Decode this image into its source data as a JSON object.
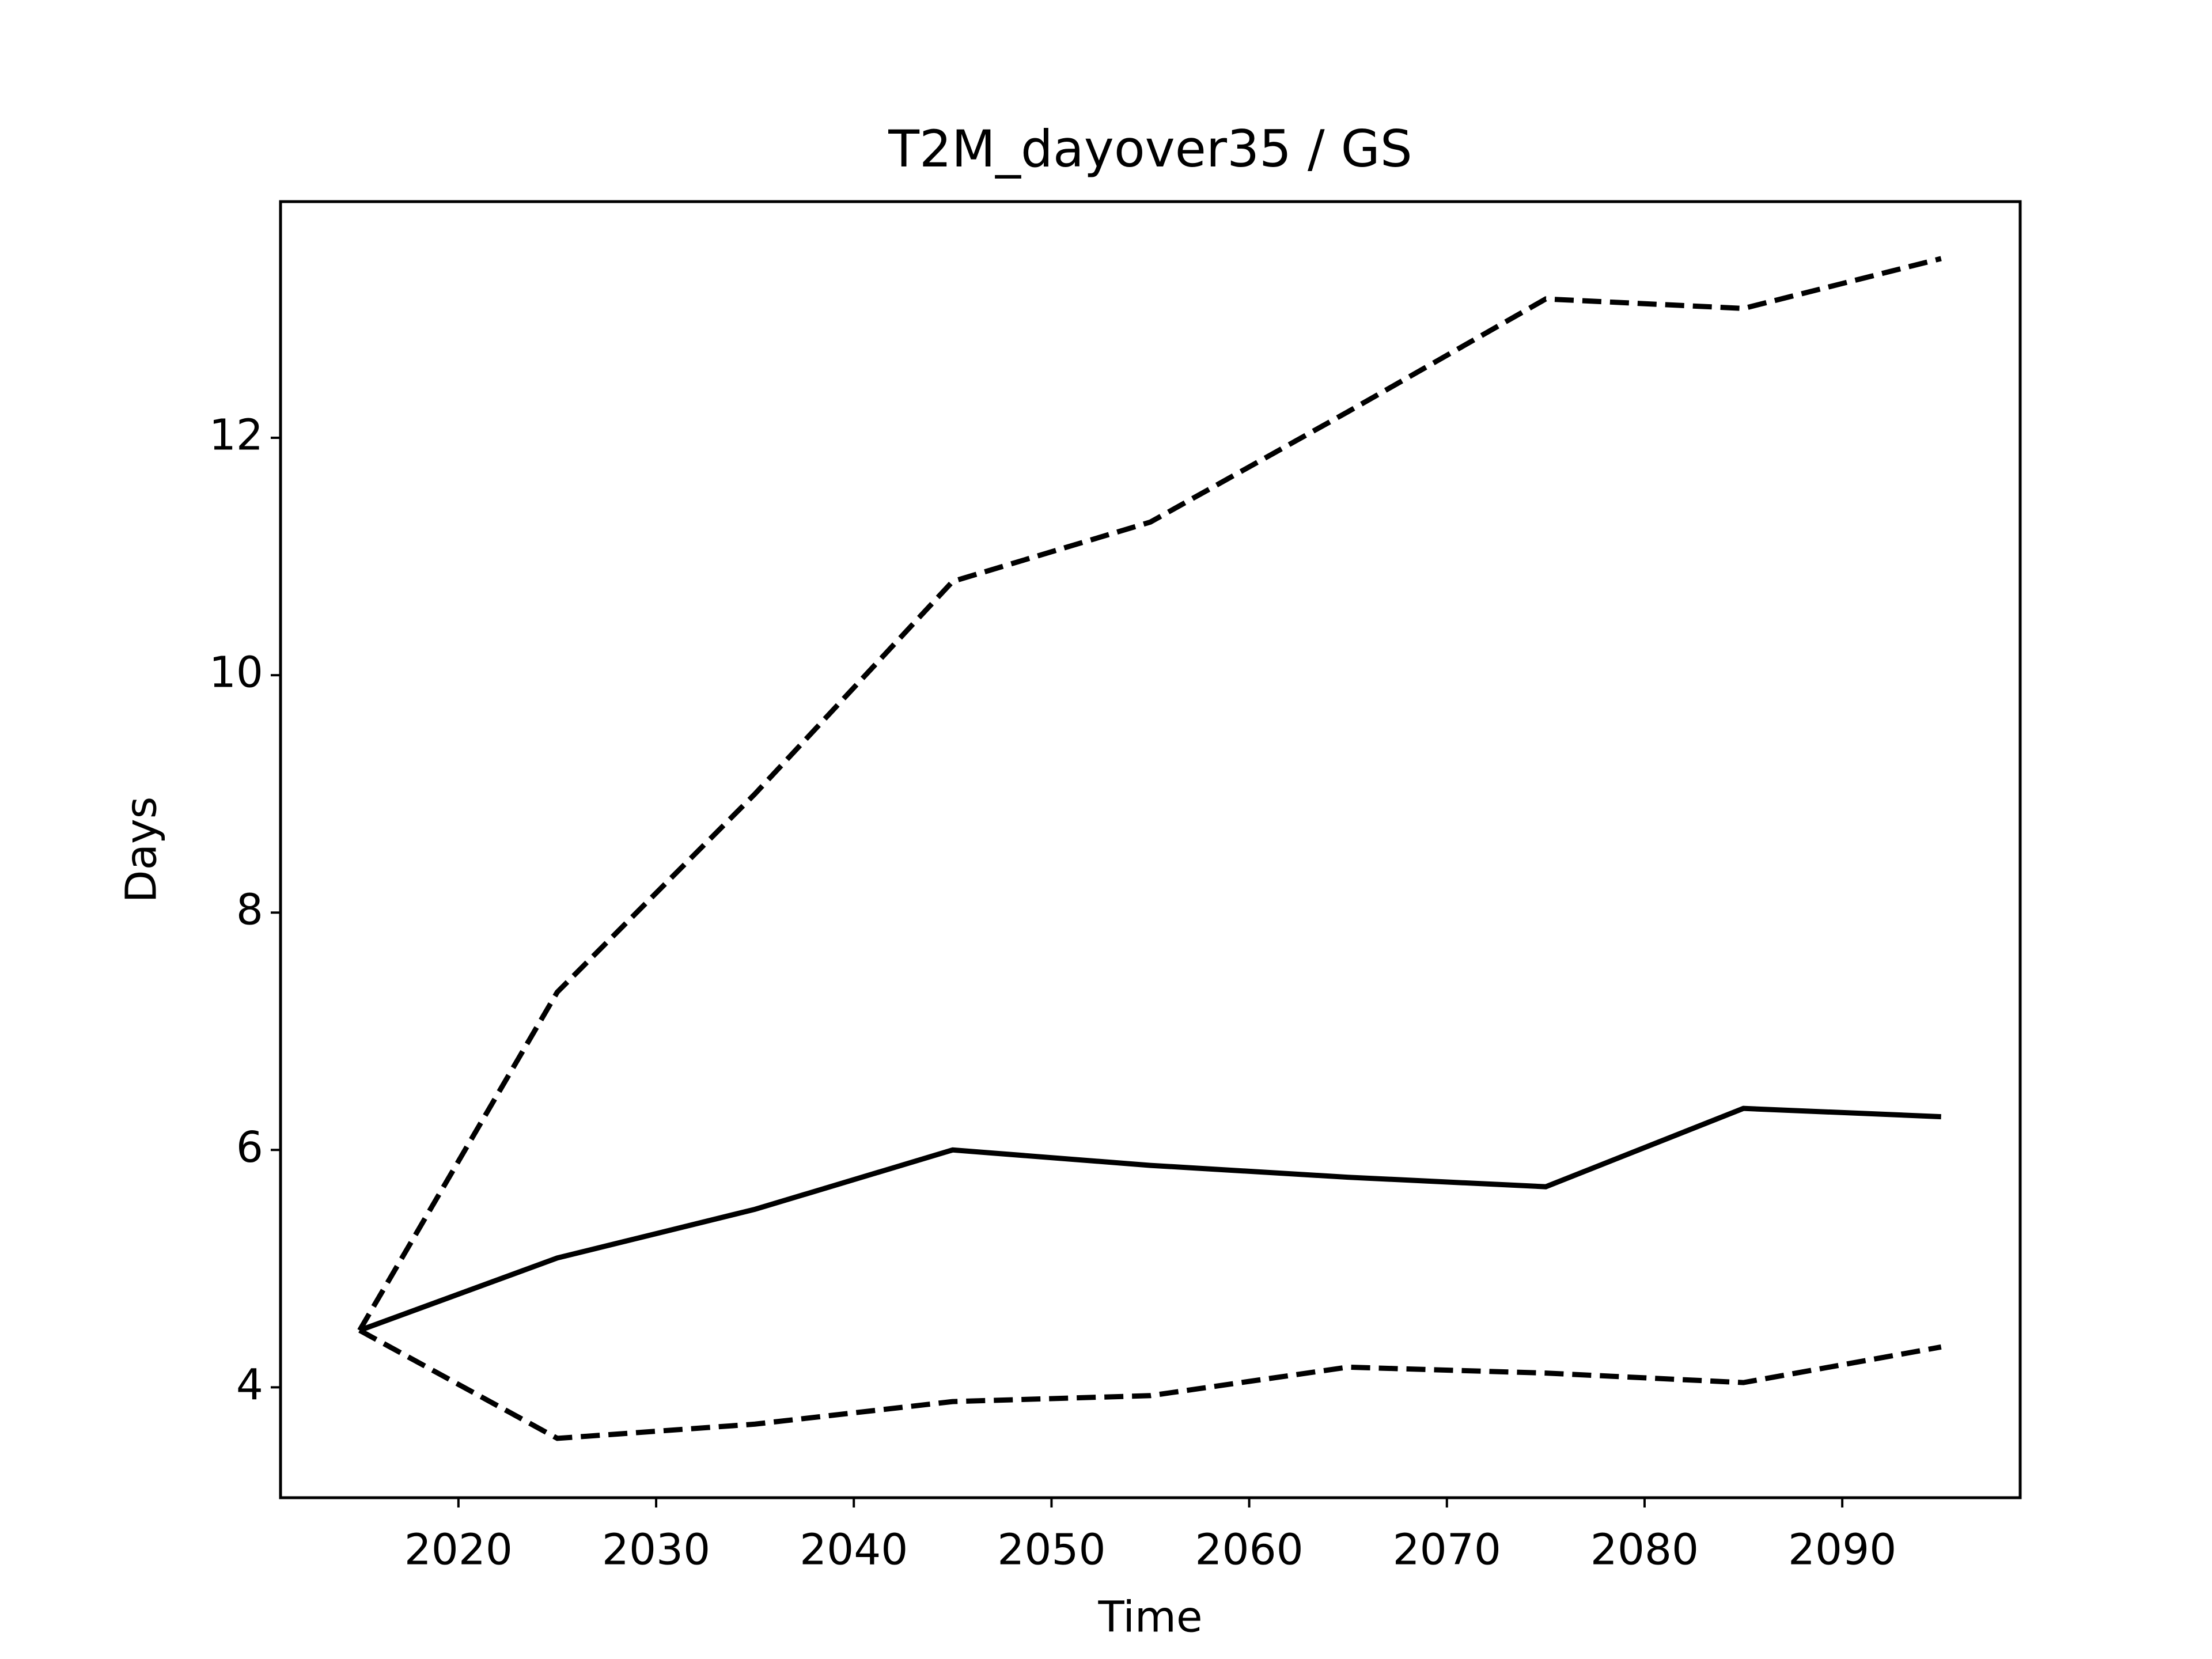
{
  "chart_data": {
    "type": "line",
    "title": "T2M_dayover35 / GS",
    "x_label": "Time",
    "y_label": "Days",
    "x": [
      2015,
      2025,
      2035,
      2045,
      2055,
      2065,
      2075,
      2085,
      2095
    ],
    "series": [
      {
        "color": "#000000",
        "dash": "solid",
        "values": [
          4.48,
          5.09,
          5.5,
          6.0,
          5.87,
          5.77,
          5.69,
          6.35,
          6.28
        ]
      },
      {
        "color": "#000000",
        "dash": "dashed",
        "values": [
          4.48,
          7.33,
          9.0,
          10.79,
          11.29,
          12.22,
          13.17,
          13.09,
          13.51
        ]
      },
      {
        "color": "#000000",
        "dash": "dashed",
        "values": [
          4.48,
          3.57,
          3.69,
          3.88,
          3.93,
          4.17,
          4.12,
          4.04,
          4.34
        ]
      }
    ],
    "xlim": [
      2011,
      2099
    ],
    "xticks": [
      2020,
      2030,
      2040,
      2050,
      2060,
      2070,
      2080,
      2090
    ],
    "ylim": [
      3.07,
      13.99
    ],
    "yticks": [
      4,
      6,
      8,
      10,
      12
    ],
    "grid": false
  }
}
